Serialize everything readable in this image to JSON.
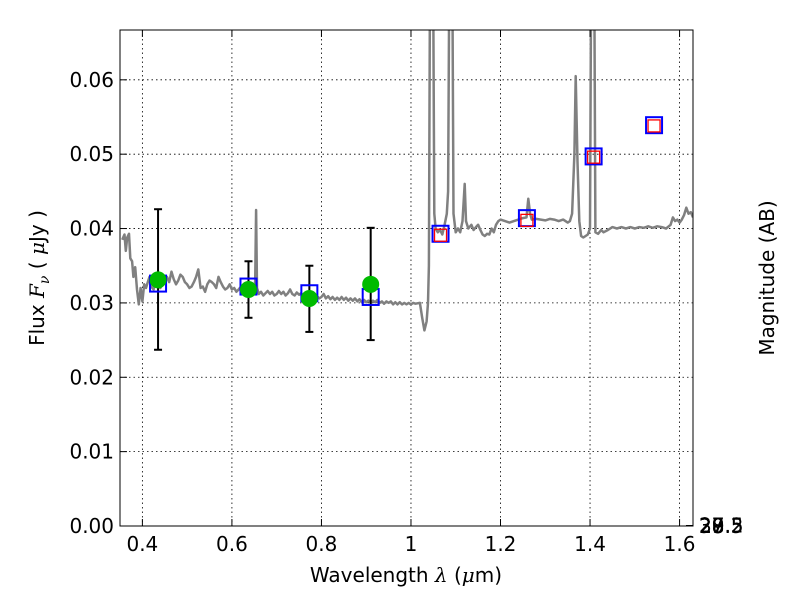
{
  "chart_data": {
    "type": "scatter",
    "xlabel": {
      "pre": "Wavelength  ",
      "sym": "λ",
      "post": " (",
      "mu": "μ",
      "unit": "m)"
    },
    "ylabel": {
      "pre": "Flux  ",
      "sym": "F",
      "sub": "ν",
      "post": "  ( ",
      "mu": "μ",
      "unit": "Jy )"
    },
    "y2label": "Magnitude (AB)",
    "xlim": [
      0.35,
      1.63
    ],
    "ylim": [
      0.0,
      0.0667
    ],
    "grid": true,
    "x_ticks": [
      {
        "v": 0.4,
        "label": "0.4"
      },
      {
        "v": 0.6,
        "label": "0.6"
      },
      {
        "v": 0.8,
        "label": "0.8"
      },
      {
        "v": 1.0,
        "label": "1"
      },
      {
        "v": 1.2,
        "label": "1.2"
      },
      {
        "v": 1.4,
        "label": "1.4"
      },
      {
        "v": 1.6,
        "label": "1.6"
      }
    ],
    "y_ticks": [
      {
        "v": 0.0,
        "label": "0.00"
      },
      {
        "v": 0.01,
        "label": "0.01"
      },
      {
        "v": 0.02,
        "label": "0.02"
      },
      {
        "v": 0.03,
        "label": "0.03"
      },
      {
        "v": 0.04,
        "label": "0.04"
      },
      {
        "v": 0.05,
        "label": "0.05"
      },
      {
        "v": 0.06,
        "label": "0.06"
      }
    ],
    "mag_ticks": [
      {
        "v": 27,
        "label": "27"
      },
      {
        "v": 27.2,
        "label": "27.2"
      },
      {
        "v": 27.5,
        "label": "27.5"
      },
      {
        "v": 28,
        "label": "28"
      },
      {
        "v": 28.5,
        "label": "28.5"
      },
      {
        "v": 29,
        "label": "29"
      },
      {
        "v": 30,
        "label": "30"
      }
    ],
    "model_spectrum": {
      "color": "#808080",
      "points": [
        [
          0.355,
          0.0385
        ],
        [
          0.36,
          0.0392
        ],
        [
          0.363,
          0.037
        ],
        [
          0.366,
          0.0388
        ],
        [
          0.37,
          0.0393
        ],
        [
          0.373,
          0.036
        ],
        [
          0.377,
          0.0356
        ],
        [
          0.38,
          0.0335
        ],
        [
          0.384,
          0.0348
        ],
        [
          0.388,
          0.0318
        ],
        [
          0.392,
          0.0298
        ],
        [
          0.396,
          0.032
        ],
        [
          0.4,
          0.0302
        ],
        [
          0.404,
          0.0325
        ],
        [
          0.408,
          0.032
        ],
        [
          0.412,
          0.0328
        ],
        [
          0.416,
          0.0335
        ],
        [
          0.42,
          0.0322
        ],
        [
          0.425,
          0.0318
        ],
        [
          0.43,
          0.0332
        ],
        [
          0.435,
          0.0338
        ],
        [
          0.44,
          0.032
        ],
        [
          0.445,
          0.0325
        ],
        [
          0.45,
          0.033
        ],
        [
          0.455,
          0.0335
        ],
        [
          0.46,
          0.0328
        ],
        [
          0.465,
          0.0342
        ],
        [
          0.47,
          0.0332
        ],
        [
          0.475,
          0.0325
        ],
        [
          0.48,
          0.033
        ],
        [
          0.485,
          0.0338
        ],
        [
          0.49,
          0.0335
        ],
        [
          0.495,
          0.0328
        ],
        [
          0.5,
          0.0325
        ],
        [
          0.505,
          0.032
        ],
        [
          0.51,
          0.0322
        ],
        [
          0.515,
          0.0328
        ],
        [
          0.52,
          0.0335
        ],
        [
          0.525,
          0.0345
        ],
        [
          0.53,
          0.032
        ],
        [
          0.535,
          0.0322
        ],
        [
          0.54,
          0.0315
        ],
        [
          0.545,
          0.0325
        ],
        [
          0.55,
          0.033
        ],
        [
          0.555,
          0.0328
        ],
        [
          0.56,
          0.0325
        ],
        [
          0.565,
          0.032
        ],
        [
          0.57,
          0.0335
        ],
        [
          0.575,
          0.0328
        ],
        [
          0.58,
          0.0322
        ],
        [
          0.585,
          0.0318
        ],
        [
          0.59,
          0.032
        ],
        [
          0.595,
          0.0325
        ],
        [
          0.6,
          0.0318
        ],
        [
          0.605,
          0.032
        ],
        [
          0.61,
          0.0315
        ],
        [
          0.615,
          0.0318
        ],
        [
          0.62,
          0.0322
        ],
        [
          0.625,
          0.0318
        ],
        [
          0.63,
          0.0312
        ],
        [
          0.635,
          0.0318
        ],
        [
          0.64,
          0.0315
        ],
        [
          0.645,
          0.0312
        ],
        [
          0.65,
          0.0316
        ],
        [
          0.652,
          0.033
        ],
        [
          0.654,
          0.0425
        ],
        [
          0.656,
          0.032
        ],
        [
          0.66,
          0.0312
        ],
        [
          0.665,
          0.0315
        ],
        [
          0.67,
          0.031
        ],
        [
          0.675,
          0.0313
        ],
        [
          0.68,
          0.0316
        ],
        [
          0.685,
          0.0312
        ],
        [
          0.69,
          0.0315
        ],
        [
          0.695,
          0.031
        ],
        [
          0.7,
          0.0312
        ],
        [
          0.705,
          0.0316
        ],
        [
          0.71,
          0.0312
        ],
        [
          0.715,
          0.0315
        ],
        [
          0.72,
          0.031
        ],
        [
          0.725,
          0.0313
        ],
        [
          0.73,
          0.0318
        ],
        [
          0.735,
          0.0312
        ],
        [
          0.74,
          0.031
        ],
        [
          0.745,
          0.0314
        ],
        [
          0.75,
          0.0311
        ],
        [
          0.755,
          0.0313
        ],
        [
          0.76,
          0.0309
        ],
        [
          0.765,
          0.0312
        ],
        [
          0.77,
          0.031
        ],
        [
          0.775,
          0.0308
        ],
        [
          0.78,
          0.031
        ],
        [
          0.785,
          0.0307
        ],
        [
          0.79,
          0.0309
        ],
        [
          0.795,
          0.0306
        ],
        [
          0.8,
          0.0308
        ],
        [
          0.805,
          0.0312
        ],
        [
          0.81,
          0.0306
        ],
        [
          0.815,
          0.0309
        ],
        [
          0.82,
          0.0305
        ],
        [
          0.825,
          0.0308
        ],
        [
          0.83,
          0.0304
        ],
        [
          0.835,
          0.0307
        ],
        [
          0.84,
          0.0304
        ],
        [
          0.845,
          0.0308
        ],
        [
          0.85,
          0.0304
        ],
        [
          0.855,
          0.0307
        ],
        [
          0.86,
          0.0303
        ],
        [
          0.865,
          0.0306
        ],
        [
          0.87,
          0.0303
        ],
        [
          0.875,
          0.0306
        ],
        [
          0.88,
          0.0302
        ],
        [
          0.885,
          0.0305
        ],
        [
          0.89,
          0.0301
        ],
        [
          0.895,
          0.0304
        ],
        [
          0.9,
          0.0301
        ],
        [
          0.905,
          0.0303
        ],
        [
          0.91,
          0.03
        ],
        [
          0.915,
          0.0303
        ],
        [
          0.92,
          0.0301
        ],
        [
          0.925,
          0.0304
        ],
        [
          0.93,
          0.03
        ],
        [
          0.935,
          0.0302
        ],
        [
          0.94,
          0.0299
        ],
        [
          0.945,
          0.0302
        ],
        [
          0.95,
          0.03
        ],
        [
          0.955,
          0.0302
        ],
        [
          0.96,
          0.0298
        ],
        [
          0.965,
          0.0301
        ],
        [
          0.97,
          0.0298
        ],
        [
          0.975,
          0.0301
        ],
        [
          0.98,
          0.0298
        ],
        [
          0.985,
          0.03
        ],
        [
          0.99,
          0.0298
        ],
        [
          0.995,
          0.03
        ],
        [
          1.0,
          0.0298
        ],
        [
          1.005,
          0.03
        ],
        [
          1.01,
          0.0299
        ],
        [
          1.02,
          0.03
        ],
        [
          1.025,
          0.028
        ],
        [
          1.03,
          0.0263
        ],
        [
          1.035,
          0.0275
        ],
        [
          1.038,
          0.03
        ],
        [
          1.04,
          0.035
        ],
        [
          1.042,
          0.067
        ],
        [
          1.05,
          0.067
        ],
        [
          1.052,
          0.042
        ],
        [
          1.055,
          0.04
        ],
        [
          1.06,
          0.0395
        ],
        [
          1.065,
          0.0398
        ],
        [
          1.07,
          0.0392
        ],
        [
          1.075,
          0.0405
        ],
        [
          1.08,
          0.042
        ],
        [
          1.083,
          0.045
        ],
        [
          1.085,
          0.067
        ],
        [
          1.093,
          0.067
        ],
        [
          1.095,
          0.042
        ],
        [
          1.1,
          0.0395
        ],
        [
          1.105,
          0.04
        ],
        [
          1.11,
          0.0395
        ],
        [
          1.115,
          0.041
        ],
        [
          1.12,
          0.046
        ],
        [
          1.123,
          0.041
        ],
        [
          1.128,
          0.04
        ],
        [
          1.135,
          0.0405
        ],
        [
          1.14,
          0.0398
        ],
        [
          1.145,
          0.0402
        ],
        [
          1.15,
          0.0405
        ],
        [
          1.155,
          0.0398
        ],
        [
          1.16,
          0.0392
        ],
        [
          1.165,
          0.039
        ],
        [
          1.17,
          0.0393
        ],
        [
          1.175,
          0.0392
        ],
        [
          1.18,
          0.04
        ],
        [
          1.185,
          0.0395
        ],
        [
          1.19,
          0.0405
        ],
        [
          1.195,
          0.041
        ],
        [
          1.2,
          0.0412
        ],
        [
          1.21,
          0.041
        ],
        [
          1.22,
          0.0408
        ],
        [
          1.23,
          0.041
        ],
        [
          1.24,
          0.0412
        ],
        [
          1.25,
          0.0414
        ],
        [
          1.258,
          0.0415
        ],
        [
          1.262,
          0.044
        ],
        [
          1.266,
          0.042
        ],
        [
          1.27,
          0.0412
        ],
        [
          1.28,
          0.0413
        ],
        [
          1.29,
          0.0412
        ],
        [
          1.3,
          0.0411
        ],
        [
          1.31,
          0.0413
        ],
        [
          1.32,
          0.0412
        ],
        [
          1.33,
          0.041
        ],
        [
          1.34,
          0.0412
        ],
        [
          1.35,
          0.0408
        ],
        [
          1.355,
          0.041
        ],
        [
          1.36,
          0.042
        ],
        [
          1.365,
          0.05
        ],
        [
          1.368,
          0.0605
        ],
        [
          1.372,
          0.049
        ],
        [
          1.376,
          0.041
        ],
        [
          1.38,
          0.039
        ],
        [
          1.385,
          0.0388
        ],
        [
          1.39,
          0.039
        ],
        [
          1.395,
          0.0392
        ],
        [
          1.4,
          0.04
        ],
        [
          1.402,
          0.067
        ],
        [
          1.41,
          0.067
        ],
        [
          1.412,
          0.0395
        ],
        [
          1.418,
          0.0393
        ],
        [
          1.425,
          0.0398
        ],
        [
          1.43,
          0.0395
        ],
        [
          1.44,
          0.0398
        ],
        [
          1.45,
          0.0402
        ],
        [
          1.46,
          0.04
        ],
        [
          1.47,
          0.0402
        ],
        [
          1.48,
          0.04
        ],
        [
          1.49,
          0.0402
        ],
        [
          1.5,
          0.04
        ],
        [
          1.51,
          0.0402
        ],
        [
          1.52,
          0.0401
        ],
        [
          1.53,
          0.0403
        ],
        [
          1.54,
          0.0401
        ],
        [
          1.55,
          0.0403
        ],
        [
          1.56,
          0.0402
        ],
        [
          1.57,
          0.04
        ],
        [
          1.58,
          0.0405
        ],
        [
          1.585,
          0.0415
        ],
        [
          1.59,
          0.041
        ],
        [
          1.595,
          0.0412
        ],
        [
          1.6,
          0.0408
        ],
        [
          1.605,
          0.0412
        ],
        [
          1.61,
          0.0418
        ],
        [
          1.615,
          0.0428
        ],
        [
          1.62,
          0.042
        ],
        [
          1.625,
          0.0422
        ],
        [
          1.63,
          0.0415
        ]
      ]
    },
    "series": [
      {
        "marker": "open-square",
        "color": "#0000ff",
        "points": [
          [
            0.435,
            0.0326
          ],
          [
            0.637,
            0.0322
          ],
          [
            0.773,
            0.0313
          ],
          [
            0.91,
            0.0308
          ],
          [
            1.066,
            0.0393
          ],
          [
            1.259,
            0.0414
          ],
          [
            1.408,
            0.0497
          ],
          [
            1.543,
            0.0539
          ]
        ]
      },
      {
        "marker": "open-square-small",
        "color": "#ff0000",
        "points": [
          [
            1.066,
            0.0391
          ],
          [
            1.259,
            0.0411
          ],
          [
            1.408,
            0.0496
          ],
          [
            1.543,
            0.0538
          ]
        ]
      },
      {
        "marker": "filled-circle",
        "color": "#00bb00",
        "points": [
          {
            "x": 0.435,
            "y": 0.0331,
            "lo": 0.0237,
            "hi": 0.0426
          },
          {
            "x": 0.637,
            "y": 0.0318,
            "lo": 0.028,
            "hi": 0.0356
          },
          {
            "x": 0.773,
            "y": 0.0306,
            "lo": 0.0261,
            "hi": 0.035
          },
          {
            "x": 0.91,
            "y": 0.0325,
            "lo": 0.025,
            "hi": 0.0401
          }
        ]
      }
    ]
  }
}
